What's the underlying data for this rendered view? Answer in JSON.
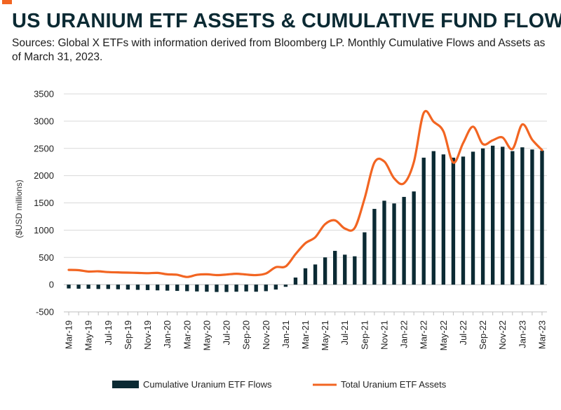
{
  "header": {
    "title": "US URANIUM ETF ASSETS & CUMULATIVE FUND FLOWS",
    "subtitle": "Sources: Global X ETFs with information derived from Bloomberg LP. Monthly Cumulative Flows and Assets as of March 31, 2023."
  },
  "colors": {
    "accent": "#f26522",
    "bars": "#0b2a33",
    "line": "#f26522",
    "grid": "#d9d9d9"
  },
  "chart_data": {
    "type": "bar+line",
    "ylabel": "($USD millions)",
    "ylim": [
      -500,
      3500
    ],
    "yticks": [
      -500,
      0,
      500,
      1000,
      1500,
      2000,
      2500,
      3000,
      3500
    ],
    "ytick_labels": [
      "-500",
      "0",
      "500",
      "1000",
      "1500",
      "2000",
      "2500",
      "3000",
      "3500"
    ],
    "grid": true,
    "legend_position": "bottom",
    "categories": [
      "Mar-19",
      "Apr-19",
      "May-19",
      "Jun-19",
      "Jul-19",
      "Aug-19",
      "Sep-19",
      "Oct-19",
      "Nov-19",
      "Dec-19",
      "Jan-20",
      "Feb-20",
      "Mar-20",
      "Apr-20",
      "May-20",
      "Jun-20",
      "Jul-20",
      "Aug-20",
      "Sep-20",
      "Oct-20",
      "Nov-20",
      "Dec-20",
      "Jan-21",
      "Feb-21",
      "Mar-21",
      "Apr-21",
      "May-21",
      "Jun-21",
      "Jul-21",
      "Aug-21",
      "Sep-21",
      "Oct-21",
      "Nov-21",
      "Dec-21",
      "Jan-22",
      "Feb-22",
      "Mar-22",
      "Apr-22",
      "May-22",
      "Jun-22",
      "Jul-22",
      "Aug-22",
      "Sep-22",
      "Oct-22",
      "Nov-22",
      "Dec-22",
      "Jan-23",
      "Feb-23",
      "Mar-23"
    ],
    "x_tick_labels": [
      "Mar-19",
      "May-19",
      "Jul-19",
      "Sep-19",
      "Nov-19",
      "Jan-20",
      "Mar-20",
      "May-20",
      "Jul-20",
      "Sep-20",
      "Nov-20",
      "Jan-21",
      "Mar-21",
      "May-21",
      "Jul-21",
      "Sep-21",
      "Nov-21",
      "Jan-22",
      "Mar-22",
      "May-22",
      "Jul-22",
      "Sep-22",
      "Nov-22",
      "Jan-23",
      "Mar-23"
    ],
    "series": [
      {
        "name": "Cumulative Uranium ETF Flows",
        "type": "bar",
        "values": [
          -70,
          -75,
          -75,
          -80,
          -80,
          -85,
          -90,
          -95,
          -100,
          -105,
          -110,
          -115,
          -120,
          -125,
          -130,
          -135,
          -135,
          -130,
          -125,
          -130,
          -120,
          -90,
          -40,
          130,
          300,
          370,
          500,
          620,
          550,
          520,
          960,
          1390,
          1540,
          1490,
          1610,
          1710,
          2330,
          2450,
          2390,
          2330,
          2350,
          2440,
          2500,
          2550,
          2530,
          2450,
          2520,
          2480,
          2460
        ]
      },
      {
        "name": "Total Uranium ETF Assets",
        "type": "line",
        "values": [
          270,
          265,
          240,
          245,
          230,
          225,
          220,
          215,
          210,
          215,
          190,
          180,
          140,
          180,
          190,
          175,
          185,
          200,
          185,
          175,
          205,
          320,
          335,
          560,
          760,
          870,
          1110,
          1180,
          1030,
          1040,
          1580,
          2240,
          2260,
          1950,
          1860,
          2250,
          3150,
          2990,
          2810,
          2240,
          2600,
          2900,
          2580,
          2650,
          2700,
          2490,
          2940,
          2660,
          2470
        ]
      }
    ]
  }
}
